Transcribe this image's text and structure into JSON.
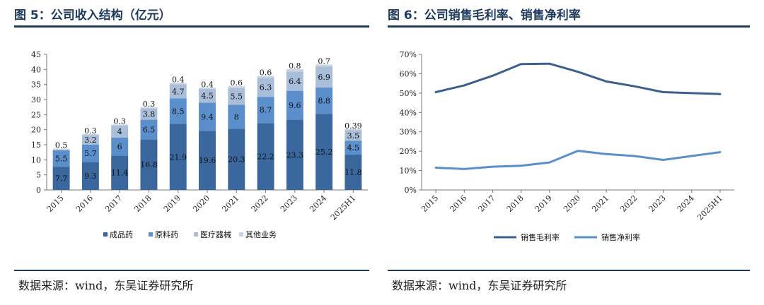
{
  "left": {
    "title": "图 5：公司收入结构（亿元）",
    "source": "数据来源：wind，东吴证券研究所",
    "chart_data": {
      "type": "bar",
      "stacked": true,
      "categories": [
        "2015",
        "2016",
        "2017",
        "2018",
        "2019",
        "2020",
        "2021",
        "2022",
        "2023",
        "2024",
        "2025H1"
      ],
      "series": [
        {
          "name": "成品药",
          "color": "#3a689e",
          "values": [
            7.7,
            9.3,
            11.4,
            16.8,
            21.9,
            19.6,
            20.3,
            22.2,
            23.3,
            25.2,
            11.8
          ]
        },
        {
          "name": "原料药",
          "color": "#5b8fcb",
          "values": [
            5.5,
            5.7,
            6.0,
            6.5,
            8.5,
            9.4,
            8.0,
            8.7,
            9.6,
            8.8,
            4.5
          ]
        },
        {
          "name": "医疗器械",
          "color": "#a9bed8",
          "values": [
            null,
            3.2,
            4.0,
            3.8,
            4.7,
            4.5,
            5.5,
            6.3,
            6.4,
            6.9,
            3.5
          ]
        },
        {
          "name": "其他业务",
          "color": "#c9d3e1",
          "values": [
            0.5,
            0.3,
            0.3,
            0.3,
            0.4,
            0.4,
            0.6,
            0.6,
            0.8,
            0.7,
            0.39
          ]
        }
      ],
      "yticks": [
        "0",
        "5",
        "10",
        "15",
        "20",
        "25",
        "30",
        "35",
        "40",
        "45"
      ],
      "ylim": [
        0,
        45
      ],
      "legend_position": "bottom"
    }
  },
  "right": {
    "title": "图 6：公司销售毛利率、销售净利率",
    "source": "数据来源：wind，东吴证券研究所",
    "chart_data": {
      "type": "line",
      "categories": [
        "2015",
        "2016",
        "2017",
        "2018",
        "2019",
        "2020",
        "2021",
        "2022",
        "2023",
        "2024",
        "2025H1"
      ],
      "series": [
        {
          "name": "销售毛利率",
          "color": "#3d5f8f",
          "values": [
            50.5,
            54,
            59,
            65,
            65.2,
            61,
            56,
            53.5,
            50.5,
            50,
            49.5
          ]
        },
        {
          "name": "销售净利率",
          "color": "#5b8fcb",
          "values": [
            11.5,
            10.8,
            12,
            12.5,
            14.2,
            20.2,
            18.5,
            17.5,
            15.5,
            17.5,
            19.5
          ]
        }
      ],
      "yticks": [
        "0%",
        "10%",
        "20%",
        "30%",
        "40%",
        "50%",
        "60%",
        "70%"
      ],
      "ylim": [
        0,
        70
      ],
      "legend_position": "bottom"
    }
  }
}
